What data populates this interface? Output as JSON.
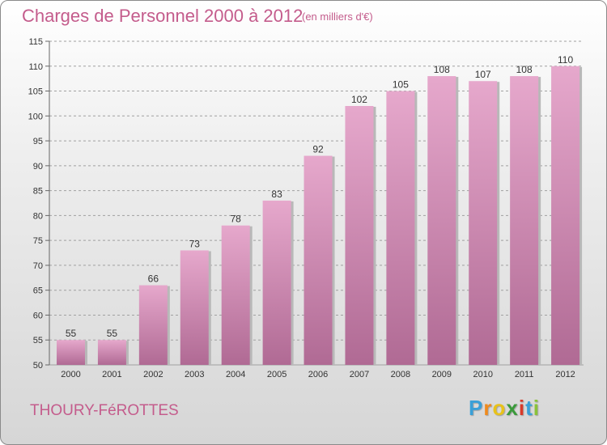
{
  "title": "Charges de Personnel 2000 à 2012",
  "subtitle": "(en milliers d'€)",
  "commune": "THOURY-FéROTTES",
  "logo": {
    "letters": [
      "P",
      "r",
      "o",
      "x",
      "i",
      "t",
      "i"
    ],
    "colors": [
      "#3aa0d8",
      "#f08a1c",
      "#e8c21a",
      "#3a9a3a",
      "#d83a2a",
      "#3aa0d8",
      "#8ac23a"
    ]
  },
  "colors": {
    "accent": "#c45c8c",
    "bar_top": "#e6a8cc",
    "bar_bottom": "#b06a94",
    "grid": "#a0a0a0"
  },
  "chart_data": {
    "type": "bar",
    "title": "Charges de Personnel 2000 à 2012",
    "subtitle": "(en milliers d'€)",
    "categories": [
      "2000",
      "2001",
      "2002",
      "2003",
      "2004",
      "2005",
      "2006",
      "2007",
      "2008",
      "2009",
      "2010",
      "2011",
      "2012"
    ],
    "values": [
      55,
      55,
      66,
      73,
      78,
      83,
      92,
      102,
      105,
      108,
      107,
      108,
      110
    ],
    "ylim": [
      50,
      115
    ],
    "yticks": [
      50,
      55,
      60,
      65,
      70,
      75,
      80,
      85,
      90,
      95,
      100,
      105,
      110,
      115
    ],
    "xlabel": "",
    "ylabel": "",
    "grid": "dashed horizontal"
  }
}
